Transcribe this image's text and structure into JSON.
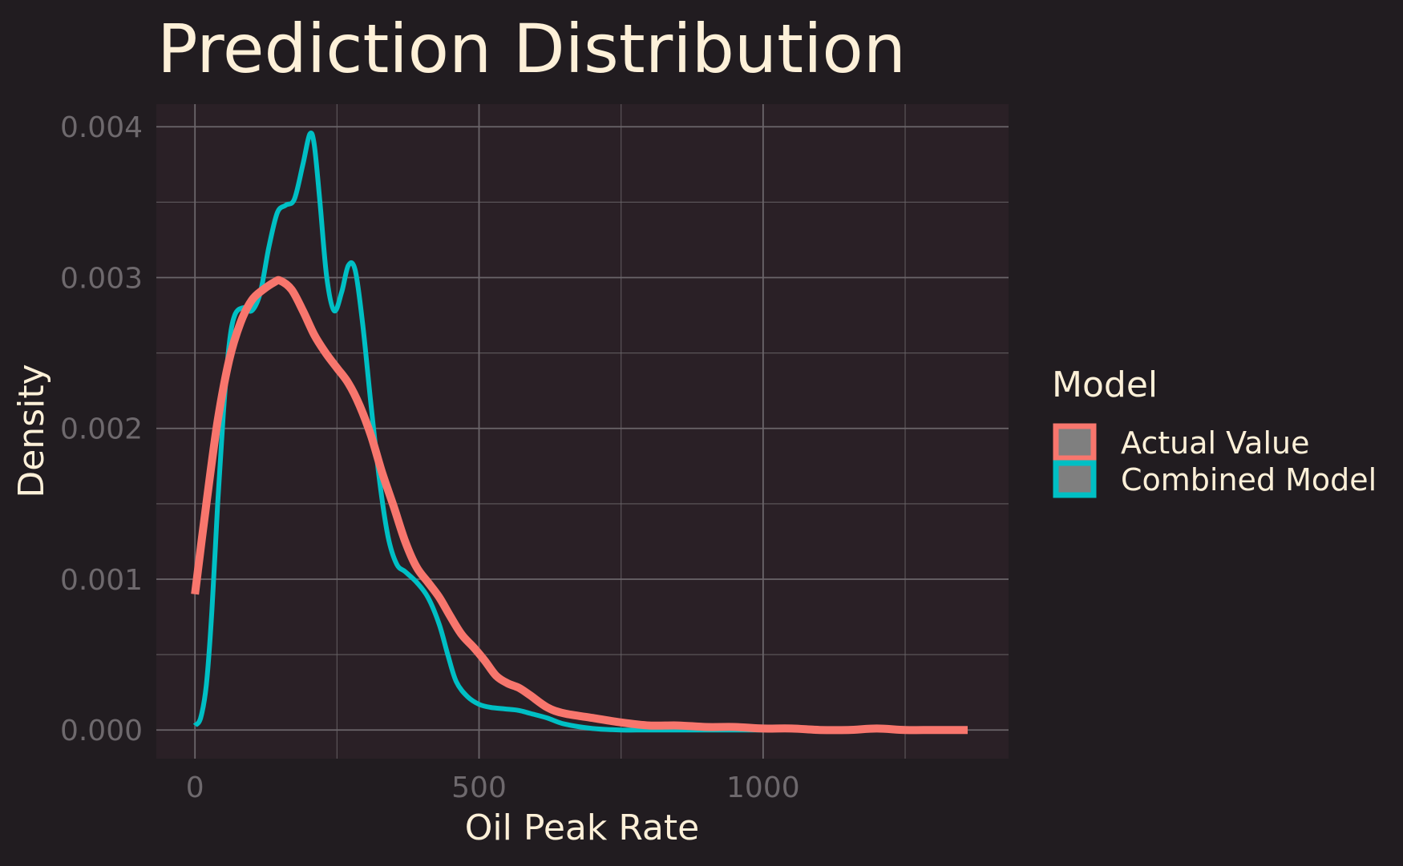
{
  "colors": {
    "background": "#211c20",
    "panel": "#2a2026",
    "grid": "#6b656a",
    "text": "#fdf0d8",
    "tick_text": "#6e696d",
    "actual": "#f8766d",
    "combined": "#00bfc4",
    "legend_key_fill": "#7f7f7f"
  },
  "chart_data": {
    "type": "line",
    "title": "Prediction Distribution",
    "xlabel": "Oil Peak Rate",
    "ylabel": "Density",
    "xlim": [
      -68,
      1432
    ],
    "ylim": [
      -0.00019,
      0.00415
    ],
    "x_ticks": [
      0,
      500,
      1000
    ],
    "x_tick_labels": [
      "0",
      "500",
      "1000"
    ],
    "x_minor_ticks": [
      250,
      750,
      1250
    ],
    "y_ticks": [
      0.0,
      0.001,
      0.002,
      0.003,
      0.004
    ],
    "y_tick_labels": [
      "0.000",
      "0.001",
      "0.002",
      "0.003",
      "0.004"
    ],
    "y_minor_ticks": [
      0.0005,
      0.0015,
      0.0025,
      0.0035
    ],
    "grid": true,
    "legend": {
      "title": "Model",
      "position": "right"
    },
    "series": [
      {
        "name": "Actual Value",
        "color_key": "actual",
        "points": [
          [
            0,
            0.0009
          ],
          [
            20,
            0.0015
          ],
          [
            40,
            0.00205
          ],
          [
            60,
            0.00245
          ],
          [
            80,
            0.0027
          ],
          [
            100,
            0.00285
          ],
          [
            120,
            0.00292
          ],
          [
            140,
            0.00297
          ],
          [
            150,
            0.00298
          ],
          [
            170,
            0.00292
          ],
          [
            190,
            0.00278
          ],
          [
            210,
            0.00262
          ],
          [
            230,
            0.0025
          ],
          [
            250,
            0.0024
          ],
          [
            270,
            0.0023
          ],
          [
            290,
            0.00215
          ],
          [
            310,
            0.00195
          ],
          [
            330,
            0.0017
          ],
          [
            350,
            0.00148
          ],
          [
            370,
            0.00125
          ],
          [
            390,
            0.00108
          ],
          [
            410,
            0.00098
          ],
          [
            430,
            0.00088
          ],
          [
            450,
            0.00075
          ],
          [
            470,
            0.00063
          ],
          [
            490,
            0.00055
          ],
          [
            510,
            0.00046
          ],
          [
            530,
            0.00036
          ],
          [
            550,
            0.00031
          ],
          [
            570,
            0.00028
          ],
          [
            590,
            0.00023
          ],
          [
            620,
            0.00015
          ],
          [
            650,
            0.00011
          ],
          [
            700,
            8e-05
          ],
          [
            750,
            5e-05
          ],
          [
            800,
            3e-05
          ],
          [
            850,
            3e-05
          ],
          [
            900,
            2e-05
          ],
          [
            950,
            2e-05
          ],
          [
            1000,
            1e-05
          ],
          [
            1050,
            1e-05
          ],
          [
            1100,
            0.0
          ],
          [
            1150,
            0.0
          ],
          [
            1200,
            1e-05
          ],
          [
            1250,
            0.0
          ],
          [
            1300,
            0.0
          ],
          [
            1360,
            0.0
          ]
        ]
      },
      {
        "name": "Combined Model",
        "color_key": "combined",
        "points": [
          [
            0,
            3e-05
          ],
          [
            10,
            8e-05
          ],
          [
            20,
            0.0003
          ],
          [
            30,
            0.0008
          ],
          [
            40,
            0.0015
          ],
          [
            50,
            0.0021
          ],
          [
            60,
            0.00255
          ],
          [
            70,
            0.00275
          ],
          [
            85,
            0.0028
          ],
          [
            100,
            0.00278
          ],
          [
            115,
            0.0029
          ],
          [
            130,
            0.0032
          ],
          [
            145,
            0.00343
          ],
          [
            160,
            0.00348
          ],
          [
            175,
            0.00352
          ],
          [
            190,
            0.00375
          ],
          [
            202,
            0.00395
          ],
          [
            210,
            0.00388
          ],
          [
            220,
            0.0035
          ],
          [
            232,
            0.003
          ],
          [
            245,
            0.00278
          ],
          [
            258,
            0.0029
          ],
          [
            270,
            0.00308
          ],
          [
            282,
            0.00305
          ],
          [
            295,
            0.0027
          ],
          [
            310,
            0.00215
          ],
          [
            325,
            0.00165
          ],
          [
            340,
            0.00128
          ],
          [
            355,
            0.0011
          ],
          [
            370,
            0.00105
          ],
          [
            390,
            0.00098
          ],
          [
            410,
            0.00088
          ],
          [
            430,
            0.0007
          ],
          [
            445,
            0.0005
          ],
          [
            460,
            0.00032
          ],
          [
            480,
            0.00022
          ],
          [
            500,
            0.00017
          ],
          [
            520,
            0.00015
          ],
          [
            545,
            0.00014
          ],
          [
            570,
            0.00013
          ],
          [
            590,
            0.00011
          ],
          [
            620,
            8e-05
          ],
          [
            650,
            4e-05
          ],
          [
            700,
            1e-05
          ],
          [
            750,
            0.0
          ],
          [
            800,
            0.0
          ],
          [
            900,
            0.0
          ],
          [
            1000,
            0.0
          ]
        ]
      }
    ]
  }
}
